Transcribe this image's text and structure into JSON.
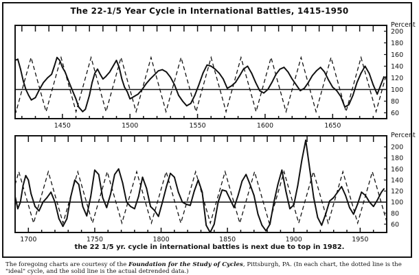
{
  "title": "The 22-1/5 Year Cycle in International Battles, 1415-1950",
  "note": "the 22 1/5 yr. cycle in international battles is next due to top in 1982.",
  "credit": {
    "prefix": "The foregoing charts are courtesy of the ",
    "org": "Foundation for the Study of Cycles",
    "suffix": ", Pittsburgh, PA. (In each chart, the dotted line is the \"ideal\" cycle, and the solid line is the actual detrended data.)"
  },
  "chart_data": [
    {
      "type": "line",
      "panel": "top",
      "xlim": [
        1415,
        1690
      ],
      "ylim": [
        50,
        210
      ],
      "xticks": [
        1450,
        1500,
        1550,
        1600,
        1650
      ],
      "yticks": [
        60,
        80,
        100,
        120,
        140,
        160,
        180,
        200
      ],
      "ylabel": "Percent",
      "reference_line": 100,
      "ideal_cycle": {
        "period_years": 22.2,
        "peak_year": 1449,
        "max": 155,
        "min": 62,
        "style": "dashed"
      },
      "series": [
        {
          "style": "solid",
          "x": [
            1415,
            1417,
            1419,
            1421,
            1423,
            1425,
            1427,
            1430,
            1433,
            1436,
            1439,
            1442,
            1444,
            1446,
            1448,
            1450,
            1452,
            1455,
            1458,
            1460,
            1462,
            1465,
            1467,
            1470,
            1472,
            1474,
            1476,
            1478,
            1480,
            1482,
            1485,
            1488,
            1490,
            1492,
            1494,
            1496,
            1498,
            1500,
            1503,
            1506,
            1509,
            1512,
            1515,
            1518,
            1521,
            1524,
            1527,
            1530,
            1533,
            1536,
            1539,
            1542,
            1545,
            1548,
            1551,
            1554,
            1557,
            1560,
            1563,
            1566,
            1569,
            1572,
            1575,
            1578,
            1581,
            1584,
            1587,
            1590,
            1593,
            1596,
            1599,
            1602,
            1605,
            1608,
            1611,
            1614,
            1617,
            1620,
            1623,
            1626,
            1629,
            1632,
            1635,
            1638,
            1641,
            1644,
            1647,
            1650,
            1653,
            1656,
            1659,
            1662,
            1665,
            1668,
            1671,
            1674,
            1677,
            1680,
            1683,
            1686,
            1688
          ],
          "y": [
            150,
            152,
            135,
            115,
            100,
            90,
            82,
            86,
            100,
            112,
            120,
            126,
            140,
            155,
            150,
            138,
            130,
            112,
            95,
            84,
            70,
            62,
            66,
            90,
            112,
            128,
            135,
            126,
            118,
            122,
            130,
            142,
            150,
            138,
            118,
            104,
            96,
            84,
            88,
            92,
            100,
            110,
            118,
            125,
            132,
            134,
            130,
            121,
            108,
            90,
            80,
            72,
            76,
            90,
            108,
            128,
            142,
            140,
            135,
            128,
            118,
            102,
            106,
            112,
            123,
            135,
            140,
            128,
            112,
            98,
            94,
            100,
            112,
            126,
            135,
            138,
            130,
            118,
            108,
            98,
            102,
            112,
            124,
            132,
            138,
            130,
            116,
            104,
            98,
            88,
            70,
            74,
            90,
            112,
            128,
            140,
            128,
            108,
            92,
            110,
            122
          ]
        }
      ]
    },
    {
      "type": "line",
      "panel": "bottom",
      "xlim": [
        1690,
        1970
      ],
      "ylim": [
        45,
        220
      ],
      "xticks": [
        1700,
        1750,
        1800,
        1850,
        1900,
        1950
      ],
      "yticks": [
        60,
        80,
        100,
        120,
        140,
        160,
        180,
        200
      ],
      "ylabel": "Percent",
      "reference_line": 100,
      "ideal_cycle": {
        "period_years": 22.2,
        "peak_year": 1715,
        "max": 155,
        "min": 62,
        "style": "dashed"
      },
      "series": [
        {
          "style": "solid",
          "x": [
            1690,
            1692,
            1694,
            1696,
            1698,
            1700,
            1702,
            1705,
            1708,
            1711,
            1714,
            1717,
            1720,
            1723,
            1726,
            1729,
            1732,
            1735,
            1738,
            1741,
            1744,
            1747,
            1750,
            1753,
            1756,
            1759,
            1762,
            1765,
            1768,
            1771,
            1774,
            1777,
            1780,
            1783,
            1786,
            1789,
            1792,
            1795,
            1798,
            1801,
            1804,
            1807,
            1810,
            1813,
            1816,
            1819,
            1822,
            1825,
            1828,
            1831,
            1834,
            1837,
            1840,
            1843,
            1846,
            1849,
            1852,
            1855,
            1858,
            1861,
            1864,
            1867,
            1870,
            1873,
            1876,
            1879,
            1882,
            1885,
            1888,
            1891,
            1894,
            1897,
            1900,
            1903,
            1906,
            1909,
            1912,
            1915,
            1918,
            1921,
            1924,
            1927,
            1930,
            1933,
            1936,
            1939,
            1942,
            1945,
            1948,
            1951,
            1954,
            1957,
            1960,
            1963,
            1966,
            1968
          ],
          "y": [
            110,
            88,
            100,
            130,
            148,
            140,
            115,
            92,
            84,
            100,
            108,
            118,
            100,
            70,
            56,
            70,
            110,
            140,
            132,
            92,
            75,
            110,
            158,
            150,
            108,
            90,
            115,
            150,
            160,
            135,
            100,
            92,
            88,
            110,
            145,
            125,
            92,
            85,
            74,
            100,
            128,
            152,
            145,
            118,
            100,
            96,
            94,
            120,
            140,
            118,
            58,
            45,
            60,
            100,
            122,
            120,
            105,
            90,
            112,
            138,
            150,
            132,
            112,
            78,
            58,
            48,
            60,
            100,
            132,
            158,
            120,
            88,
            95,
            130,
            175,
            212,
            160,
            108,
            72,
            58,
            78,
            102,
            108,
            118,
            128,
            112,
            90,
            78,
            96,
            118,
            112,
            100,
            92,
            104,
            118,
            124
          ]
        }
      ]
    }
  ]
}
